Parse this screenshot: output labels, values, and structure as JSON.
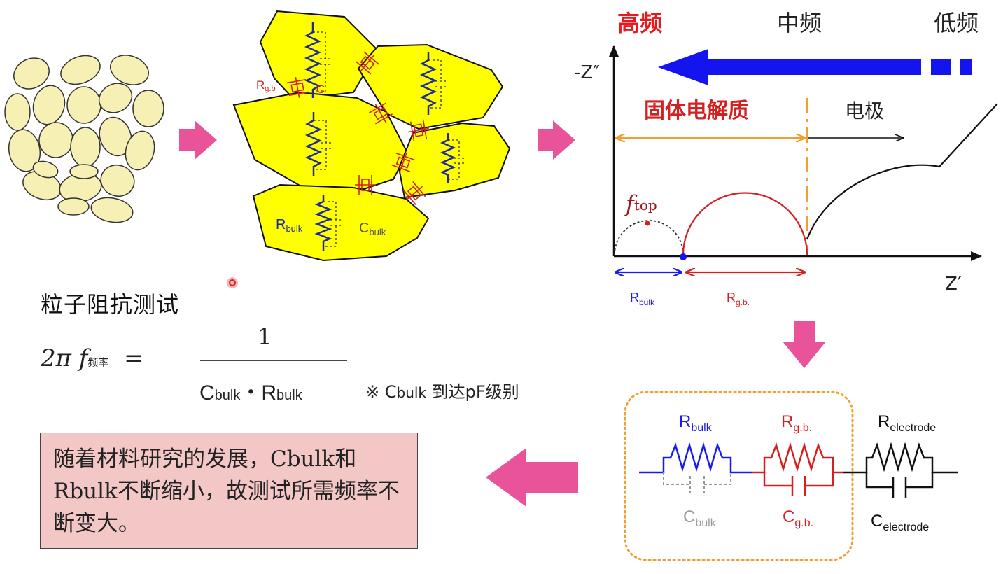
{
  "frequency_labels": {
    "high": "高频",
    "mid": "中频",
    "low": "低频"
  },
  "plot": {
    "y_axis": "-Z″",
    "x_axis": "Z′",
    "solid_electrolyte": "固体电解质",
    "electrode": "电极",
    "f_top": "f",
    "f_top_sub": "top",
    "r_bulk_main": "R",
    "r_bulk_sub": "bulk",
    "r_gb_main": "R",
    "r_gb_sub": "g.b."
  },
  "particles": {
    "r_gb_label_main": "R",
    "r_gb_label_sub": "g.b",
    "c_gb_label": "C",
    "r_bulk_label_main": "R",
    "r_bulk_label_sub": "bulk",
    "c_bulk_label_main": "C",
    "c_bulk_label_sub": "bulk"
  },
  "formula": {
    "title": "粒子阻抗测试",
    "lhs_main": "2π f",
    "lhs_sub": "频率",
    "equals": "=",
    "numerator": "1",
    "denominator_c": "C",
    "denominator_c_sub": "bulk",
    "denominator_dot": "・",
    "denominator_r": "R",
    "denominator_r_sub": "bulk",
    "note_mark": "※ C",
    "note_sub": "bulk",
    "note_text": " 到达pF级别"
  },
  "circuit": {
    "r_bulk_main": "R",
    "r_bulk_sub": "bulk",
    "c_bulk_main": "C",
    "c_bulk_sub": "bulk",
    "r_gb_main": "R",
    "r_gb_sub": "g.b.",
    "c_gb_main": "C",
    "c_gb_sub": "g.b.",
    "r_electrode_main": "R",
    "r_electrode_sub": "electrode",
    "c_electrode_main": "C",
    "c_electrode_sub": "electrode"
  },
  "summary": "随着材料研究的发展，Cbulk和Rbulk不断缩小，故测试所需频率不断变大。",
  "colors": {
    "arrow_pink": "#e8539a",
    "grain_yellow": "#ffff00",
    "particle_fill": "#f6f0b4",
    "high_freq_red": "#e8191e",
    "blue": "#1414ee",
    "orange": "#f0a030",
    "red": "#d42020",
    "summary_bg": "#f4c7c7"
  }
}
